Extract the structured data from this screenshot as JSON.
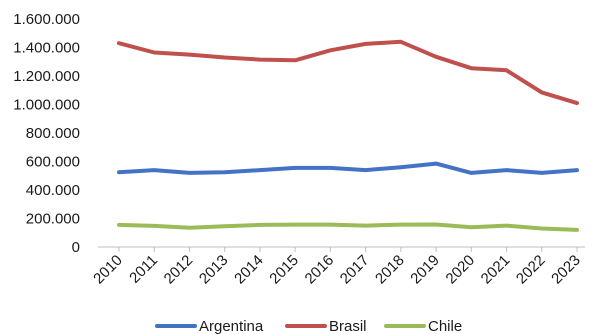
{
  "chart_data": {
    "type": "line",
    "title": "",
    "xlabel": "",
    "ylabel": "",
    "x": [
      "2010",
      "2011",
      "2012",
      "2013",
      "2014",
      "2015",
      "2016",
      "2017",
      "2018",
      "2019",
      "2020",
      "2021",
      "2022",
      "2023"
    ],
    "ylim": [
      0,
      1600000
    ],
    "y_ticks": [
      0,
      200000,
      400000,
      600000,
      800000,
      1000000,
      1200000,
      1400000,
      1600000
    ],
    "y_tick_labels": [
      "0",
      "200.000",
      "400.000",
      "600.000",
      "800.000",
      "1.000.000",
      "1.200.000",
      "1.400.000",
      "1.600.000"
    ],
    "grid": false,
    "legend_position": "bottom",
    "series": [
      {
        "name": "Argentina",
        "color": "#4472C4",
        "values": [
          525000,
          540000,
          520000,
          525000,
          540000,
          555000,
          555000,
          540000,
          560000,
          585000,
          520000,
          540000,
          520000,
          540000
        ]
      },
      {
        "name": "Brasil",
        "color": "#C0504D",
        "values": [
          1430000,
          1365000,
          1350000,
          1330000,
          1315000,
          1310000,
          1380000,
          1425000,
          1440000,
          1335000,
          1255000,
          1240000,
          1085000,
          1010000
        ]
      },
      {
        "name": "Chile",
        "color": "#9BBB59",
        "values": [
          155000,
          148000,
          135000,
          145000,
          155000,
          157000,
          157000,
          150000,
          157000,
          158000,
          138000,
          150000,
          130000,
          120000
        ]
      }
    ]
  }
}
